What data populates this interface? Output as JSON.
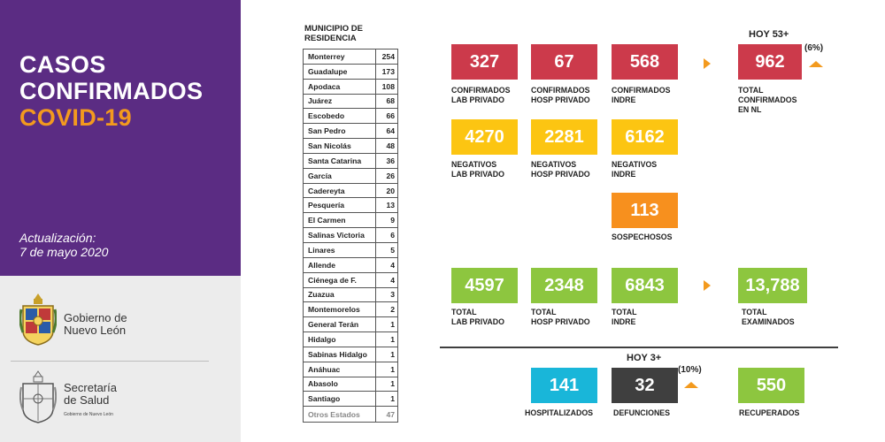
{
  "header": {
    "title_line1": "CASOS",
    "title_line2": "CONFIRMADOS",
    "title_line3": "COVID-19",
    "update_label": "Actualización:",
    "update_date": "7 de mayo 2020"
  },
  "logos": {
    "gobierno_line1": "Gobierno de",
    "gobierno_line2": "Nuevo León",
    "salud_line1": "Secretaría",
    "salud_line2": "de Salud",
    "salud_small": "Gobierno de Nuevo León"
  },
  "municipios": {
    "header_line1": "MUNICIPIO DE",
    "header_line2": "RESIDENCIA",
    "rows": [
      {
        "name": "Monterrey",
        "value": "254"
      },
      {
        "name": "Guadalupe",
        "value": "173"
      },
      {
        "name": "Apodaca",
        "value": "108"
      },
      {
        "name": "Juárez",
        "value": "68"
      },
      {
        "name": "Escobedo",
        "value": "66"
      },
      {
        "name": "San Pedro",
        "value": "64"
      },
      {
        "name": "San Nicolás",
        "value": "48"
      },
      {
        "name": "Santa Catarina",
        "value": "36"
      },
      {
        "name": "García",
        "value": "26"
      },
      {
        "name": "Cadereyta",
        "value": "20"
      },
      {
        "name": "Pesquería",
        "value": "13"
      },
      {
        "name": "El Carmen",
        "value": "9"
      },
      {
        "name": "Salinas Victoria",
        "value": "6"
      },
      {
        "name": "Linares",
        "value": "5"
      },
      {
        "name": "Allende",
        "value": "4"
      },
      {
        "name": "Ciénega de F.",
        "value": "4"
      },
      {
        "name": "Zuazua",
        "value": "3"
      },
      {
        "name": "Montemorelos",
        "value": "2"
      },
      {
        "name": "General Terán",
        "value": "1"
      },
      {
        "name": "Hidalgo",
        "value": "1"
      },
      {
        "name": "Sabinas Hidalgo",
        "value": "1"
      },
      {
        "name": "Anáhuac",
        "value": "1"
      },
      {
        "name": "Abasolo",
        "value": "1"
      },
      {
        "name": "Santiago",
        "value": "1"
      },
      {
        "name": "Otros Estados",
        "value": "47"
      }
    ]
  },
  "confirmados": {
    "hoy_label": "HOY 53+",
    "pct_label": "(6%)",
    "lab_privado": {
      "value": "327",
      "label_line1": "CONFIRMADOS",
      "label_line2": "LAB PRIVADO"
    },
    "hosp_privado": {
      "value": "67",
      "label_line1": "CONFIRMADOS",
      "label_line2": "HOSP PRIVADO"
    },
    "indre": {
      "value": "568",
      "label_line1": "CONFIRMADOS",
      "label_line2": "INDRE"
    },
    "total": {
      "value": "962",
      "label_line1": "TOTAL",
      "label_line2": "CONFIRMADOS",
      "label_line3": "EN NL"
    }
  },
  "negativos": {
    "lab_privado": {
      "value": "4270",
      "label_line1": "NEGATIVOS",
      "label_line2": "LAB PRIVADO"
    },
    "hosp_privado": {
      "value": "2281",
      "label_line1": "NEGATIVOS",
      "label_line2": "HOSP PRIVADO"
    },
    "indre": {
      "value": "6162",
      "label_line1": "NEGATIVOS",
      "label_line2": "INDRE"
    }
  },
  "sospechosos": {
    "value": "113",
    "label": "SOSPECHOSOS"
  },
  "totales": {
    "lab_privado": {
      "value": "4597",
      "label_line1": "TOTAL",
      "label_line2": "LAB PRIVADO"
    },
    "hosp_privado": {
      "value": "2348",
      "label_line1": "TOTAL",
      "label_line2": "HOSP PRIVADO"
    },
    "indre": {
      "value": "6843",
      "label_line1": "TOTAL",
      "label_line2": "INDRE"
    },
    "examinados": {
      "value": "13,788",
      "label_line1": "TOTAL",
      "label_line2": "EXAMINADOS"
    }
  },
  "estado": {
    "hoy_label": "HOY 3+",
    "pct_label": "(10%)",
    "hospitalizados": {
      "value": "141",
      "label": "HOSPITALIZADOS"
    },
    "defunciones": {
      "value": "32",
      "label": "DEFUNCIONES"
    },
    "recuperados": {
      "value": "550",
      "label": "RECUPERADOS"
    }
  },
  "colors": {
    "purple": "#5b2c83",
    "orange": "#f39a1e",
    "red": "#cc3a4b",
    "yellow": "#fcc512",
    "green": "#8dc63f",
    "cyan": "#19b6d9",
    "dark": "#3f3f3f"
  }
}
